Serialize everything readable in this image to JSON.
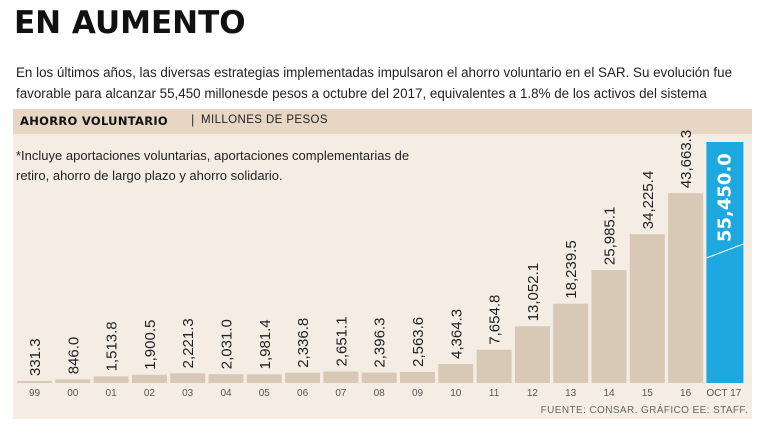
{
  "header": {
    "title": "EN AUMENTO",
    "subtitle": "En los últimos años, las diversas estrategias implementadas impulsaron el ahorro voluntario en el SAR. Su evolución fue favorable para alcanzar 55,450 millonesde pesos a octubre del 2017, equivalentes a 1.8% de los activos del sistema"
  },
  "section": {
    "label": "AHORRO VOLUNTARIO",
    "separator": "|",
    "unit": "MILLONES DE PESOS"
  },
  "note": "*Incluye aportaciones voluntarias, aportaciones complementarias de retiro, ahorro de largo plazo y ahorro solidario.",
  "source": "FUENTE: CONSAR. GRÁFICO EE: STAFF.",
  "colors": {
    "bar": "#d8c8b6",
    "highlight": "#1ea8e0",
    "panel": "#f5ede4",
    "header_bar": "#e6d6c3"
  },
  "chart_data": {
    "type": "bar",
    "title": "AHORRO VOLUNTARIO",
    "ylabel": "MILLONES DE PESOS",
    "xlabel": "",
    "categories": [
      "99",
      "00",
      "01",
      "02",
      "03",
      "04",
      "05",
      "06",
      "07",
      "08",
      "09",
      "10",
      "11",
      "12",
      "13",
      "14",
      "15",
      "16",
      "OCT 17"
    ],
    "values": [
      331.3,
      846.0,
      1513.8,
      1900.5,
      2221.3,
      2031.0,
      1981.4,
      2336.8,
      2651.1,
      2396.3,
      2563.6,
      4364.3,
      7654.8,
      13052.1,
      18239.5,
      25985.1,
      34225.4,
      43663.3,
      55450.0
    ],
    "labels": [
      "331.3",
      "846.0",
      "1,513.8",
      "1,900.5",
      "2,221.3",
      "2,031.0",
      "1,981.4",
      "2,336.8",
      "2,651.1",
      "2,396.3",
      "2,563.6",
      "4,364.3",
      "7,654.8",
      "13,052.1",
      "18,239.5",
      "25,985.1",
      "34,225.4",
      "43,663.3",
      "55,450.0"
    ],
    "highlight_index": 18,
    "ylim": [
      0,
      55450
    ]
  }
}
